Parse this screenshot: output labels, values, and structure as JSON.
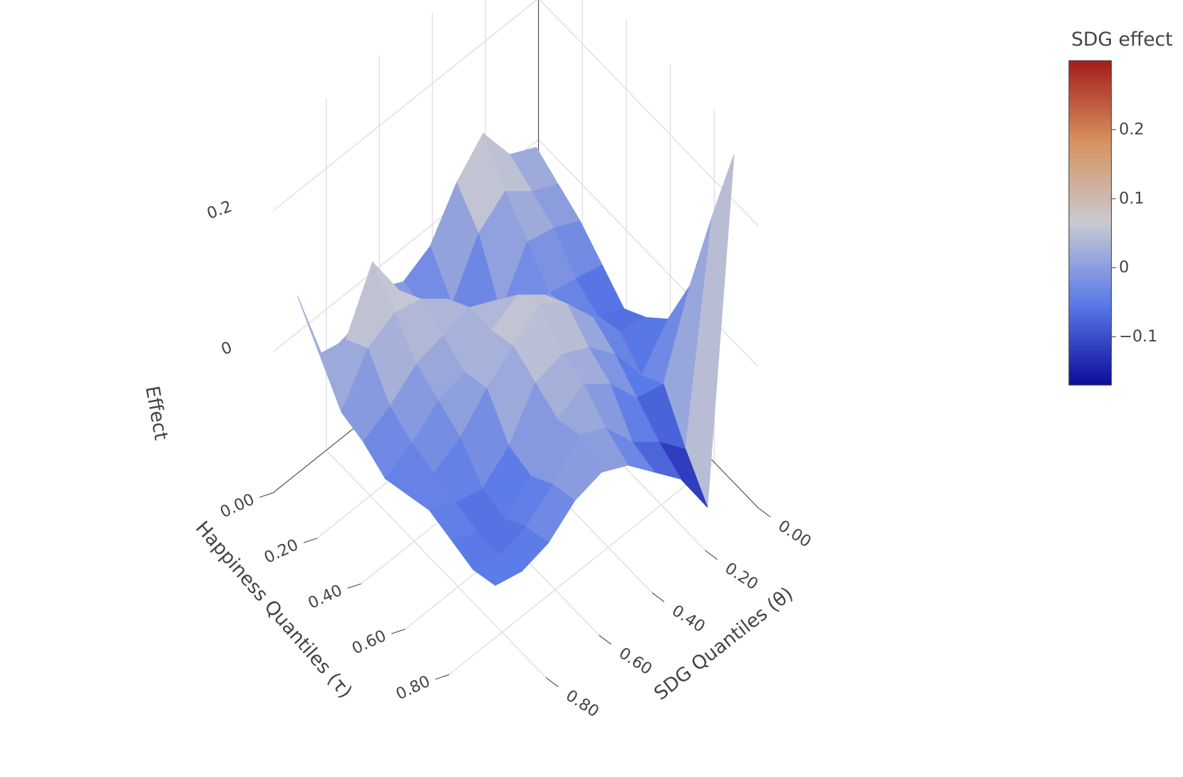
{
  "chart_data": {
    "type": "surface",
    "x_title": "SDG Quantiles (θ)",
    "y_title": "Happiness Quantiles (τ)",
    "z_title": "Effect",
    "colorbar_title": "SDG effect",
    "x": [
      0.05,
      0.15,
      0.25,
      0.35,
      0.45,
      0.55,
      0.65,
      0.75,
      0.85,
      0.95
    ],
    "y": [
      0.05,
      0.15,
      0.25,
      0.35,
      0.45,
      0.55,
      0.65,
      0.75,
      0.85,
      0.95
    ],
    "z": [
      [
        0.02,
        0.04,
        0.1,
        0.06,
        0.0,
        -0.02,
        0.0,
        -0.03,
        -0.04,
        0.08
      ],
      [
        0.0,
        0.02,
        0.05,
        0.02,
        -0.05,
        -0.03,
        0.03,
        0.1,
        0.02,
        0.03
      ],
      [
        -0.02,
        0.0,
        0.01,
        -0.06,
        -0.04,
        0.02,
        0.05,
        0.06,
        0.04,
        -0.02
      ],
      [
        -0.05,
        -0.04,
        -0.03,
        -0.02,
        0.02,
        0.04,
        0.03,
        0.02,
        -0.01,
        -0.03
      ],
      [
        -0.08,
        -0.06,
        -0.02,
        0.03,
        0.06,
        0.04,
        0.01,
        0.0,
        -0.03,
        -0.05
      ],
      [
        -0.06,
        -0.05,
        0.0,
        0.05,
        0.08,
        0.05,
        0.02,
        -0.02,
        -0.04,
        -0.04
      ],
      [
        -0.03,
        -0.08,
        -0.02,
        0.02,
        0.04,
        0.03,
        -0.03,
        -0.06,
        -0.05,
        -0.03
      ],
      [
        0.05,
        -0.06,
        -0.05,
        0.0,
        0.03,
        0.01,
        -0.04,
        -0.07,
        -0.06,
        -0.04
      ],
      [
        0.18,
        -0.12,
        -0.08,
        -0.05,
        0.0,
        0.02,
        -0.02,
        -0.05,
        -0.06,
        -0.05
      ],
      [
        0.3,
        -0.17,
        -0.1,
        -0.06,
        -0.02,
        0.0,
        -0.01,
        -0.04,
        -0.05,
        -0.04
      ]
    ],
    "xlim": [
      0,
      1
    ],
    "ylim": [
      0,
      1
    ],
    "zlim": [
      -0.2,
      0.3
    ],
    "xticks": [
      {
        "value": 0,
        "label": "0.00"
      },
      {
        "value": 0.2,
        "label": "0.20"
      },
      {
        "value": 0.4,
        "label": "0.40"
      },
      {
        "value": 0.6,
        "label": "0.60"
      },
      {
        "value": 0.8,
        "label": "0.80"
      }
    ],
    "yticks": [
      {
        "value": 0,
        "label": "0.00"
      },
      {
        "value": 0.2,
        "label": "0.20"
      },
      {
        "value": 0.4,
        "label": "0.40"
      },
      {
        "value": 0.6,
        "label": "0.60"
      },
      {
        "value": 0.8,
        "label": "0.80"
      }
    ],
    "zticks": [
      0,
      0.2
    ],
    "colorscale": [
      [
        0,
        "#0c0c9c"
      ],
      [
        0.25,
        "#5a7ae8"
      ],
      [
        0.5,
        "#c9c9d2"
      ],
      [
        0.75,
        "#d8925e"
      ],
      [
        1,
        "#a21d1d"
      ]
    ],
    "colorbar_lim": [
      -0.17,
      0.3
    ],
    "colorbar_ticks": [
      0.2,
      0.1,
      0,
      {
        "value": -0.1,
        "label": "−0.1"
      }
    ],
    "grid": true
  }
}
